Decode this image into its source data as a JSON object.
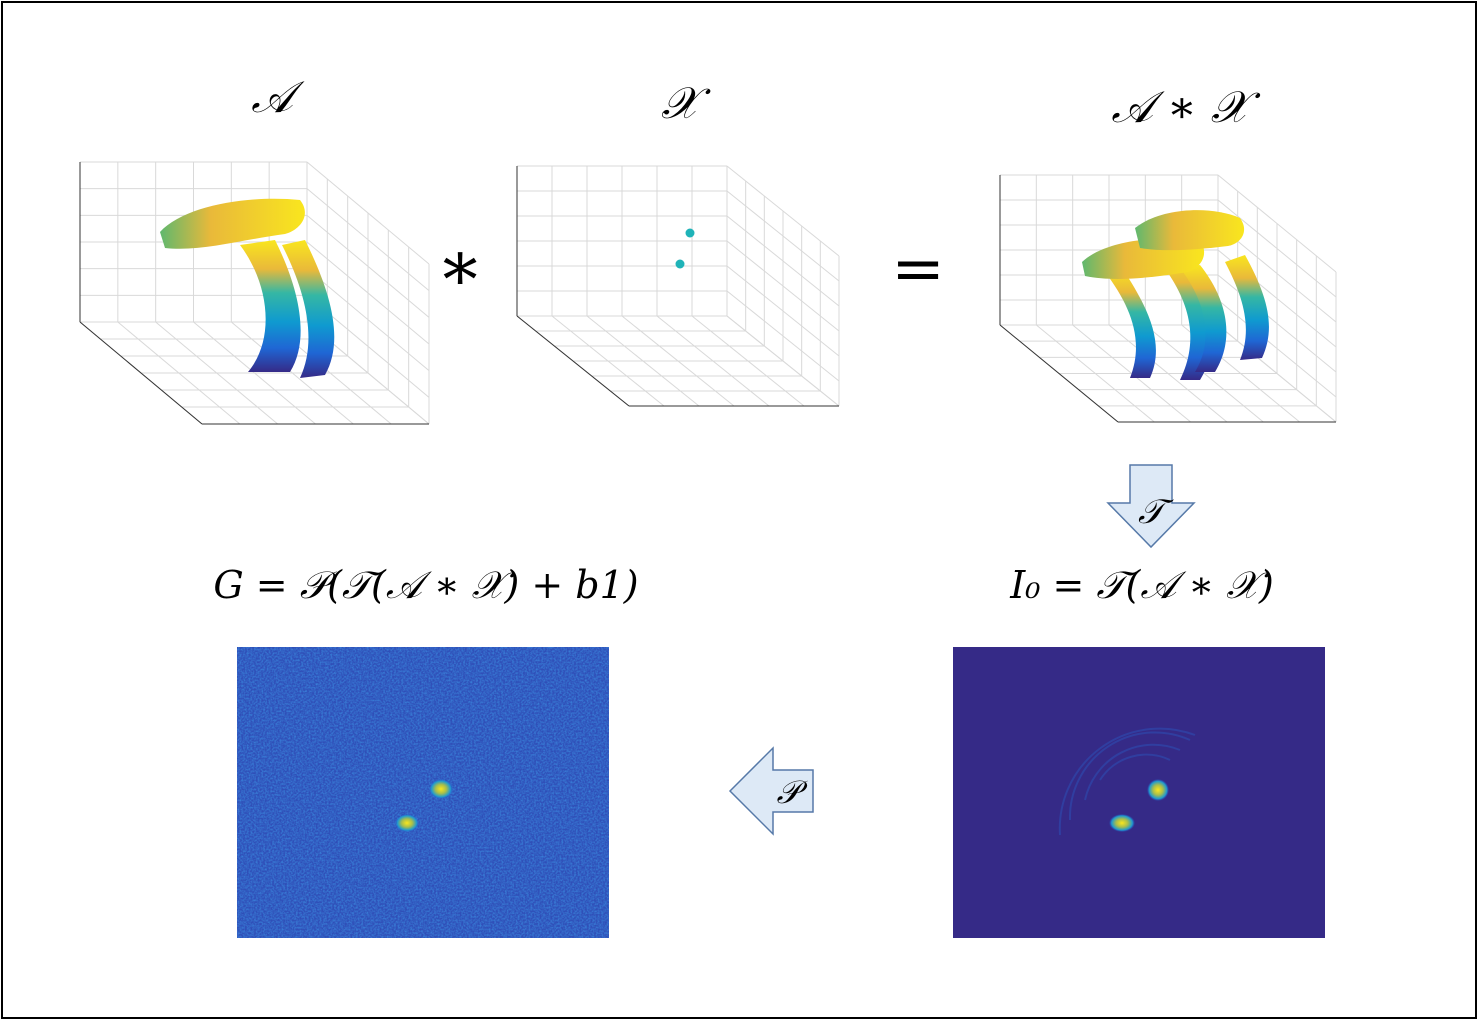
{
  "labels": {
    "A": "𝒜",
    "X": "𝒳",
    "conv_result": "𝒜 ∗ 𝒳",
    "star": "∗",
    "equals": "=",
    "T_arrow": "𝒯",
    "P_arrow": "𝒫",
    "I0_eq": "I₀ = 𝒯(𝒜 ∗ 𝒳)",
    "G_eq": "G = 𝒫(𝒯(𝒜 ∗ 𝒳) + b1)"
  },
  "colors": {
    "arrow_fill": "#dde9f6",
    "arrow_stroke": "#5679a8",
    "noise_bg": "#2f4fb8",
    "clean_bg": "#352a87",
    "point_color": "#1fb3b8",
    "colormap": [
      "#352a87",
      "#1f66d4",
      "#0f9ad0",
      "#35b7a4",
      "#a8be4c",
      "#f0b93a",
      "#f9e61e"
    ]
  }
}
